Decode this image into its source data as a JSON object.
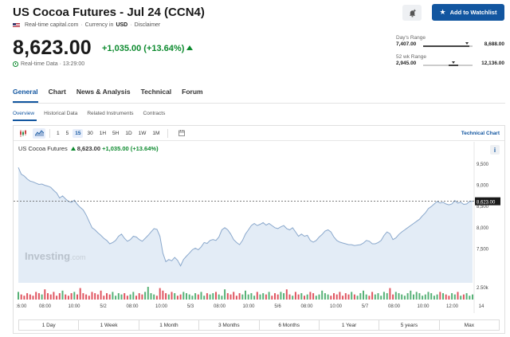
{
  "header": {
    "title": "US Cocoa Futures - Jul 24 (CCN4)",
    "source": "Real-time capital.com",
    "currency_label": "Currency in",
    "currency": "USD",
    "disclaimer": "Disclaimer",
    "price": "8,623.00",
    "change": "+1,035.00 (+13.64%)",
    "realtime": "Real-time Data · 13:29:00",
    "watchlist_label": "Add to Watchlist"
  },
  "ranges": {
    "day": {
      "label": "Day's Range",
      "low": "7,407.00",
      "high": "8,688.00"
    },
    "week52": {
      "label": "52 wk Range",
      "low": "2,945.00",
      "high": "12,136.00"
    }
  },
  "tabs": [
    "General",
    "Chart",
    "News & Analysis",
    "Technical",
    "Forum"
  ],
  "subtabs": [
    "Overview",
    "Historical Data",
    "Related Instruments",
    "Contracts"
  ],
  "toolbar": {
    "intervals": [
      "1",
      "5",
      "15",
      "30",
      "1H",
      "5H",
      "1D",
      "1W",
      "1M"
    ],
    "active_interval": "15",
    "technical_chart": "Technical Chart"
  },
  "legend": {
    "name": "US Cocoa Futures",
    "price": "8,623.00",
    "change": "+1,035.00 (+13.64%)"
  },
  "time_ranges": [
    "1 Day",
    "1 Week",
    "1 Month",
    "3 Months",
    "6 Months",
    "1 Year",
    "5 years",
    "Max"
  ],
  "watermark": {
    "brand": "Investing",
    "suffix": ".com"
  },
  "colors": {
    "accent": "#1256a0",
    "up": "#0c8a2e",
    "down": "#d9363e",
    "line": "#8aa8cc",
    "area": "#e3ecf6"
  },
  "chart_data": {
    "type": "area",
    "current_price": 8623,
    "current_label": "8,623.00",
    "ylim": [
      6700,
      9800
    ],
    "yticks": [
      7500,
      8000,
      8500,
      9000,
      9500
    ],
    "ytick_labels": [
      "7,500",
      "8,000",
      "8,500",
      "9,000",
      "9,500"
    ],
    "volume_label": "2.50k",
    "xtick_labels": [
      ":6:00",
      "08:00",
      "10:00",
      "5/2",
      "08:00",
      "10:00",
      "5/3",
      "08:00",
      "10:00",
      "5/6",
      "08:00",
      "10:00",
      "5/7",
      "08:00",
      "10:00",
      "12:00",
      "14"
    ],
    "values": [
      9420,
      9260,
      9220,
      9150,
      9100,
      9080,
      9050,
      9020,
      9030,
      9000,
      8980,
      8950,
      8880,
      8820,
      8700,
      8750,
      8680,
      8620,
      8600,
      8650,
      8550,
      8480,
      8420,
      8300,
      8150,
      8000,
      7950,
      7880,
      7820,
      7750,
      7700,
      7620,
      7650,
      7700,
      7800,
      7850,
      7750,
      7680,
      7720,
      7800,
      7780,
      7720,
      7680,
      7750,
      7820,
      7900,
      7980,
      7960,
      7800,
      7400,
      7200,
      7250,
      7220,
      7300,
      7230,
      7100,
      7250,
      7330,
      7400,
      7480,
      7520,
      7480,
      7550,
      7650,
      7630,
      7700,
      7720,
      7700,
      7780,
      7950,
      8000,
      7950,
      7850,
      7720,
      7650,
      7600,
      7700,
      7850,
      7950,
      8050,
      8100,
      8050,
      8080,
      8120,
      8060,
      8100,
      8050,
      8000,
      7980,
      8020,
      8050,
      7980,
      7950,
      8000,
      7900,
      7800,
      7850,
      7800,
      7820,
      7700,
      7660,
      7700,
      7780,
      7840,
      7920,
      7950,
      7900,
      7780,
      7700,
      7660,
      7640,
      7620,
      7600,
      7600,
      7580,
      7590,
      7600,
      7640,
      7700,
      7680,
      7620,
      7620,
      7650,
      7700,
      7820,
      7900,
      7860,
      7720,
      7760,
      7840,
      7900,
      7950,
      8000,
      8050,
      8100,
      8150,
      8200,
      8280,
      8350,
      8450,
      8500,
      8560,
      8620,
      8580,
      8600,
      8560,
      8540,
      8560,
      8640,
      8580,
      8600,
      8550,
      8560,
      8620,
      8623
    ],
    "volume": [
      0.6,
      0.4,
      0.3,
      0.5,
      0.4,
      0.3,
      0.6,
      0.5,
      0.4,
      0.8,
      0.5,
      0.4,
      0.6,
      0.3,
      0.5,
      0.7,
      0.4,
      0.3,
      0.5,
      0.6,
      0.4,
      0.9,
      0.5,
      0.4,
      0.3,
      0.6,
      0.5,
      0.4,
      0.7,
      0.3,
      0.5,
      0.4,
      0.6,
      0.3,
      0.5,
      0.4,
      0.5,
      0.3,
      0.4,
      0.6,
      0.3,
      0.5,
      0.4,
      0.6,
      1.0,
      0.5,
      0.4,
      0.3,
      0.9,
      0.7,
      0.5,
      0.4,
      0.6,
      0.5,
      0.3,
      0.4,
      0.6,
      0.5,
      0.4,
      0.3,
      0.5,
      0.4,
      0.6,
      0.3,
      0.5,
      0.4,
      0.5,
      0.6,
      0.4,
      0.3,
      0.8,
      0.5,
      0.4,
      0.6,
      0.3,
      0.5,
      0.4,
      0.7,
      0.4,
      0.5,
      0.3,
      0.6,
      0.4,
      0.5,
      0.4,
      0.6,
      0.3,
      0.5,
      0.4,
      0.6,
      0.5,
      0.8,
      0.4,
      0.3,
      0.6,
      0.4,
      0.5,
      0.3,
      0.4,
      0.6,
      0.5,
      0.3,
      0.4,
      0.7,
      0.5,
      0.4,
      0.3,
      0.5,
      0.4,
      0.6,
      0.3,
      0.5,
      0.4,
      0.6,
      0.4,
      0.3,
      0.5,
      0.7,
      0.4,
      0.3,
      0.6,
      0.4,
      0.5,
      0.3,
      0.6,
      0.5,
      0.9,
      0.4,
      0.6,
      0.5,
      0.4,
      0.3,
      0.5,
      0.7,
      0.4,
      0.6,
      0.5,
      0.3,
      0.4,
      0.6,
      0.5,
      0.3,
      0.4,
      0.6,
      0.5,
      0.4,
      0.3,
      0.5,
      0.4,
      0.6,
      0.3,
      0.4,
      0.5,
      0.3,
      0.4
    ]
  }
}
